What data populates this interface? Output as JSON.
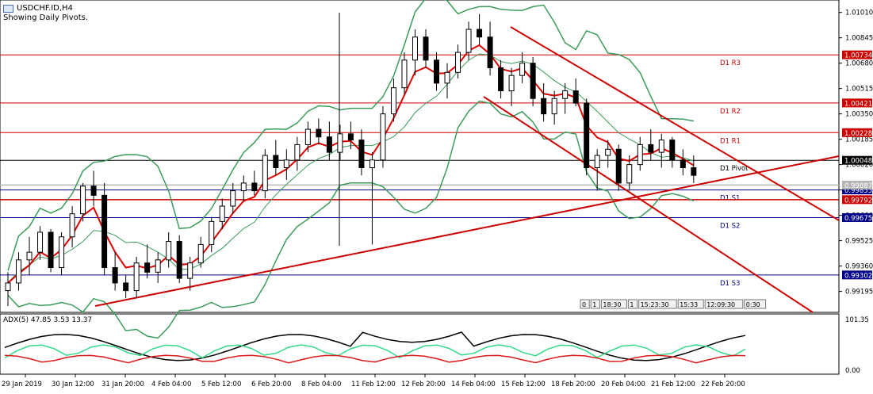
{
  "symbol_label": "USDCHF.ID,H4",
  "status_line": "Showing Daily Pivots.",
  "colors": {
    "up_candle": "#ffffff",
    "down_candle": "#000000",
    "pivot_red": "#cc0000",
    "pivot_blue": "#00008b",
    "bollinger": "#3c9b5a",
    "moving_avg": "#dd0000",
    "trend_line": "#cc0000",
    "adx_main": "#000000",
    "adx_plus": "#34d98a",
    "adx_minus": "#dd1a1a"
  },
  "price_axis": {
    "ticks": [
      "1.01010",
      "1.00845",
      "1.00680",
      "1.00515",
      "1.00350",
      "1.00185",
      "1.00020",
      "0.99855",
      "0.99690",
      "0.99525",
      "0.99360",
      "0.99195"
    ]
  },
  "pivots": [
    {
      "name": "D1 R3",
      "price": "1.00734",
      "color": "#cc0000"
    },
    {
      "name": "D1 R2",
      "price": "1.00421",
      "color": "#cc0000"
    },
    {
      "name": "D1 R1",
      "price": "1.00228",
      "color": "#cc0000"
    },
    {
      "name": "D1 Pivot",
      "price": "1.00048",
      "color": "#000000"
    },
    {
      "name": "D1 S1",
      "price": "0.99855",
      "color": "#00008b"
    },
    {
      "name": "D1 S2",
      "price": "0.99675",
      "color": "#00008b"
    },
    {
      "name": "D1 S3",
      "price": "0.99302",
      "color": "#00008b"
    }
  ],
  "extra_levels": [
    {
      "price": "0.99887",
      "color": "#b5b5b5"
    },
    {
      "price": "0.99792",
      "color": "#cc0000"
    }
  ],
  "time_axis": [
    "29 Jan 2019",
    "30 Jan 12:00",
    "31 Jan 20:00",
    "4 Feb 04:00",
    "5 Feb 12:00",
    "6 Feb 20:00",
    "8 Feb 04:00",
    "11 Feb 12:00",
    "12 Feb 20:00",
    "14 Feb 04:00",
    "15 Feb 12:00",
    "18 Feb 20:00",
    "20 Feb 04:00",
    "21 Feb 12:00",
    "22 Feb 20:00"
  ],
  "session_pills": [
    "0",
    "1",
    "18:30",
    "1",
    "15:23:30",
    "15:33",
    "12:09:30",
    "0:30"
  ],
  "adx": {
    "label": "ADX(5) 47.85 3.53 13.37",
    "max_label": "101.35",
    "min_label": "0.00"
  },
  "chart_data": {
    "type": "candlestick",
    "title": "USDCHF.ID,H4",
    "price_range": [
      0.991,
      1.0106
    ],
    "candles": [
      [
        0.992,
        0.9932,
        0.991,
        0.9925
      ],
      [
        0.9925,
        0.9945,
        0.992,
        0.994
      ],
      [
        0.994,
        0.9955,
        0.993,
        0.9945
      ],
      [
        0.9945,
        0.9962,
        0.994,
        0.9958
      ],
      [
        0.9958,
        0.996,
        0.9932,
        0.9935
      ],
      [
        0.9935,
        0.9958,
        0.993,
        0.9955
      ],
      [
        0.9955,
        0.9975,
        0.9948,
        0.997
      ],
      [
        0.997,
        0.999,
        0.9965,
        0.9988
      ],
      [
        0.9988,
        0.9998,
        0.9975,
        0.9982
      ],
      [
        0.9982,
        0.999,
        0.993,
        0.9935
      ],
      [
        0.9935,
        0.9945,
        0.992,
        0.9925
      ],
      [
        0.9925,
        0.993,
        0.9915,
        0.992
      ],
      [
        0.992,
        0.9942,
        0.9915,
        0.9938
      ],
      [
        0.9938,
        0.995,
        0.9928,
        0.9932
      ],
      [
        0.9932,
        0.9945,
        0.9925,
        0.994
      ],
      [
        0.994,
        0.9958,
        0.9935,
        0.9952
      ],
      [
        0.9952,
        0.9956,
        0.9925,
        0.9928
      ],
      [
        0.9928,
        0.9942,
        0.992,
        0.9938
      ],
      [
        0.9938,
        0.9955,
        0.9935,
        0.995
      ],
      [
        0.995,
        0.9968,
        0.9945,
        0.9965
      ],
      [
        0.9965,
        0.998,
        0.996,
        0.9975
      ],
      [
        0.9975,
        0.999,
        0.997,
        0.9985
      ],
      [
        0.9985,
        0.9995,
        0.9978,
        0.999
      ],
      [
        0.999,
        0.9998,
        0.9982,
        0.9985
      ],
      [
        0.9985,
        1.0012,
        0.998,
        1.0008
      ],
      [
        1.0008,
        1.0018,
        0.9995,
        1.0
      ],
      [
        1.0,
        1.0012,
        0.9992,
        1.0005
      ],
      [
        1.0005,
        1.002,
        0.9998,
        1.0015
      ],
      [
        1.0015,
        1.003,
        1.001,
        1.0025
      ],
      [
        1.0025,
        1.0032,
        1.0015,
        1.002
      ],
      [
        1.002,
        1.003,
        1.0005,
        1.001
      ],
      [
        1.001,
        1.0028,
        1.0005,
        1.0022
      ],
      [
        1.0022,
        1.003,
        1.0012,
        1.0018
      ],
      [
        1.0018,
        1.0025,
        0.9995,
        1.0
      ],
      [
        1.0,
        1.001,
        0.995,
        1.0005
      ],
      [
        1.0005,
        1.004,
        1.0,
        1.0035
      ],
      [
        1.0035,
        1.0058,
        1.003,
        1.0052
      ],
      [
        1.0052,
        1.0075,
        1.0048,
        1.007
      ],
      [
        1.007,
        1.009,
        1.006,
        1.0085
      ],
      [
        1.0085,
        1.009,
        1.0065,
        1.007
      ],
      [
        1.007,
        1.0075,
        1.005,
        1.0055
      ],
      [
        1.0055,
        1.0068,
        1.0045,
        1.0062
      ],
      [
        1.0062,
        1.008,
        1.0058,
        1.0075
      ],
      [
        1.0075,
        1.0095,
        1.007,
        1.009
      ],
      [
        1.009,
        1.01,
        1.008,
        1.0085
      ],
      [
        1.0085,
        1.0095,
        1.006,
        1.0065
      ],
      [
        1.0065,
        1.007,
        1.0045,
        1.005
      ],
      [
        1.005,
        1.0065,
        1.004,
        1.006
      ],
      [
        1.006,
        1.0075,
        1.0055,
        1.0068
      ],
      [
        1.0068,
        1.0072,
        1.004,
        1.0045
      ],
      [
        1.0045,
        1.0055,
        1.003,
        1.0035
      ],
      [
        1.0035,
        1.005,
        1.0028,
        1.0045
      ],
      [
        1.0045,
        1.0055,
        1.0035,
        1.005
      ],
      [
        1.005,
        1.0058,
        1.004,
        1.0042
      ],
      [
        1.0042,
        1.0045,
        0.9995,
        1.0
      ],
      [
        1.0,
        1.0012,
        0.9985,
        1.0008
      ],
      [
        1.0008,
        1.0018,
        1.0,
        1.0012
      ],
      [
        1.0012,
        1.0015,
        0.9985,
        0.999
      ],
      [
        0.999,
        1.0008,
        0.9985,
        1.0002
      ],
      [
        1.0002,
        1.002,
        0.9998,
        1.0015
      ],
      [
        1.0015,
        1.0025,
        1.0005,
        1.001
      ],
      [
        1.001,
        1.0022,
        1.0,
        1.0018
      ],
      [
        1.0018,
        1.002,
        1.0,
        1.0005
      ],
      [
        1.0005,
        1.0012,
        0.9995,
        1.0
      ],
      [
        1.0,
        1.0008,
        0.999,
        0.9995
      ]
    ]
  }
}
